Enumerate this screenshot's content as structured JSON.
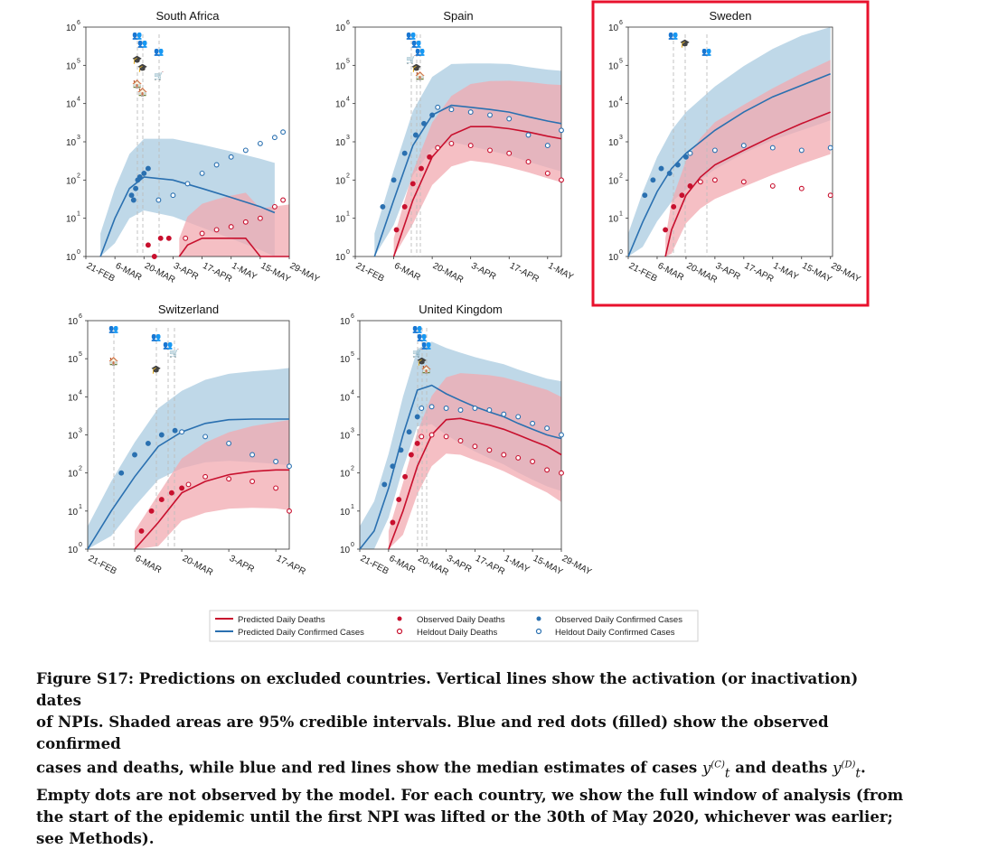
{
  "panels": [
    {
      "title": "South Africa",
      "xticks": [
        "21-FEB",
        "6-MAR",
        "20-MAR",
        "3-APR",
        "17-APR",
        "1-MAY",
        "15-MAY",
        "29-MAY"
      ],
      "npi_icons": [
        "👥",
        "👥",
        "👥",
        "🎓",
        "🎓",
        "🛒",
        "🏠",
        "🏠"
      ],
      "days": 98
    },
    {
      "title": "Spain",
      "xticks": [
        "21-FEB",
        "6-MAR",
        "20-MAR",
        "3-APR",
        "17-APR",
        "1-MAY"
      ],
      "npi_icons": [
        "👥",
        "👥",
        "👥",
        "🛒",
        "🎓",
        "🏠"
      ],
      "days": 75
    },
    {
      "title": "Sweden",
      "xticks": [
        "21-FEB",
        "6-MAR",
        "20-MAR",
        "3-APR",
        "17-APR",
        "1-MAY",
        "15-MAY",
        "29-MAY"
      ],
      "npi_icons": [
        "👥",
        "🎓",
        "👥"
      ],
      "days": 99,
      "highlighted": true
    },
    {
      "title": "Switzerland",
      "xticks": [
        "21-FEB",
        "6-MAR",
        "20-MAR",
        "3-APR",
        "17-APR"
      ],
      "npi_icons": [
        "👥",
        "👥",
        "👥",
        "🛒",
        "🏠",
        "🎓"
      ],
      "days": 60
    },
    {
      "title": "United Kingdom",
      "xticks": [
        "21-FEB",
        "6-MAR",
        "20-MAR",
        "3-APR",
        "17-APR",
        "1-MAY",
        "15-MAY",
        "29-MAY"
      ],
      "npi_icons": [
        "👥",
        "👥",
        "👥",
        "🛒",
        "🎓",
        "🏠"
      ],
      "days": 98
    }
  ],
  "yticks": [
    "10",
    "10",
    "10",
    "10",
    "10",
    "10",
    "10"
  ],
  "yexp": [
    "0",
    "1",
    "2",
    "3",
    "4",
    "5",
    "6"
  ],
  "legend": {
    "pred_deaths": "Predicted Daily Deaths",
    "pred_cases": "Predicted Daily Confirmed Cases",
    "obs_deaths": "Observed Daily Deaths",
    "held_deaths": "Heldout Daily Deaths",
    "obs_cases": "Observed Daily Confirmed Cases",
    "held_cases": "Heldout Daily Confirmed Cases"
  },
  "colors": {
    "cases": "#2a70b0",
    "cases_band": "#a9cbe0",
    "deaths": "#c8102e",
    "deaths_band": "#f2a9b0",
    "npi_purple": "#8e4a8c",
    "highlight": "#e8112d"
  },
  "caption": {
    "line1": "Figure S17: Predictions on excluded countries. Vertical lines show the activation (or inactivation) dates",
    "line2": "of NPIs. Shaded areas are 95% credible intervals. Blue and red dots (filled) show the observed confirmed",
    "line3a": "cases and deaths, while blue and red lines show the median estimates of cases ",
    "line3b": " and deaths ",
    "line3c": ".",
    "yC_base": "y",
    "yC_sup": "(C)",
    "yC_sub": "t",
    "yD_base": "y",
    "yD_sup": "(D)",
    "yD_sub": "t",
    "line4": "Empty dots are not observed by the model. For each country, we show the full window of analysis (from",
    "line5": "the start of the epidemic until the first NPI was lifted or the 30th of May 2020, whichever was earlier;",
    "line6": "see Methods)."
  },
  "chart_data": [
    {
      "type": "line",
      "title": "South Africa",
      "yscale": "log",
      "ylim": [
        1,
        1000000
      ],
      "x_dates": [
        "21-FEB",
        "6-MAR",
        "20-MAR",
        "3-APR",
        "17-APR",
        "1-MAY",
        "15-MAY",
        "29-MAY"
      ],
      "series": [
        {
          "name": "Predicted Daily Confirmed Cases",
          "x_day": [
            7,
            14,
            21,
            28,
            42,
            56,
            70,
            84,
            91
          ],
          "values": [
            1,
            10,
            60,
            120,
            100,
            60,
            35,
            20,
            14
          ]
        },
        {
          "name": "Predicted Daily Deaths",
          "x_day": [
            45,
            49,
            56,
            63,
            70,
            77,
            84,
            91,
            98
          ],
          "values": [
            1,
            2,
            3,
            3,
            3,
            3,
            1,
            1,
            1
          ]
        },
        {
          "name": "Observed Daily Confirmed Cases",
          "x_day": [
            22,
            23,
            24,
            25,
            26,
            28,
            30
          ],
          "values": [
            40,
            30,
            60,
            100,
            120,
            150,
            200
          ]
        },
        {
          "name": "Heldout Daily Confirmed Cases",
          "x_day": [
            35,
            42,
            49,
            56,
            63,
            70,
            77,
            84,
            91,
            95
          ],
          "values": [
            30,
            40,
            80,
            150,
            250,
            400,
            600,
            900,
            1300,
            1800
          ]
        },
        {
          "name": "Observed Daily Deaths",
          "x_day": [
            30,
            33,
            36,
            40
          ],
          "values": [
            2,
            1,
            3,
            3
          ]
        },
        {
          "name": "Heldout Daily Deaths",
          "x_day": [
            48,
            56,
            63,
            70,
            77,
            84,
            91,
            95
          ],
          "values": [
            3,
            4,
            5,
            6,
            8,
            10,
            20,
            30
          ]
        }
      ]
    },
    {
      "type": "line",
      "title": "Spain",
      "yscale": "log",
      "ylim": [
        1,
        1000000
      ],
      "x_dates": [
        "21-FEB",
        "6-MAR",
        "20-MAR",
        "3-APR",
        "17-APR",
        "1-MAY"
      ],
      "series": [
        {
          "name": "Predicted Daily Confirmed Cases",
          "x_day": [
            7,
            14,
            21,
            28,
            35,
            42,
            49,
            56,
            63,
            70,
            75
          ],
          "values": [
            1,
            30,
            800,
            5000,
            9000,
            8000,
            7000,
            6000,
            4500,
            3500,
            3000
          ]
        },
        {
          "name": "Predicted Daily Deaths",
          "x_day": [
            14,
            21,
            28,
            35,
            42,
            49,
            56,
            63,
            70,
            75
          ],
          "values": [
            1,
            30,
            400,
            1500,
            2500,
            2500,
            2200,
            1800,
            1400,
            1200
          ]
        },
        {
          "name": "Observed Daily Confirmed Cases",
          "x_day": [
            10,
            14,
            18,
            22,
            25,
            28
          ],
          "values": [
            20,
            100,
            500,
            1500,
            3000,
            5000
          ]
        },
        {
          "name": "Heldout Daily Confirmed Cases",
          "x_day": [
            30,
            35,
            42,
            49,
            56,
            63,
            70,
            75
          ],
          "values": [
            8000,
            7000,
            6000,
            5000,
            4000,
            1500,
            800,
            2000
          ]
        },
        {
          "name": "Observed Daily Deaths",
          "x_day": [
            15,
            18,
            21,
            24,
            27
          ],
          "values": [
            5,
            20,
            80,
            200,
            400
          ]
        },
        {
          "name": "Heldout Daily Deaths",
          "x_day": [
            30,
            35,
            42,
            49,
            56,
            63,
            70,
            75
          ],
          "values": [
            700,
            900,
            800,
            600,
            500,
            300,
            150,
            100
          ]
        }
      ]
    },
    {
      "type": "line",
      "title": "Sweden",
      "yscale": "log",
      "ylim": [
        1,
        1000000
      ],
      "x_dates": [
        "21-FEB",
        "6-MAR",
        "20-MAR",
        "3-APR",
        "17-APR",
        "1-MAY",
        "15-MAY",
        "29-MAY"
      ],
      "series": [
        {
          "name": "Predicted Daily Confirmed Cases",
          "x_day": [
            0,
            7,
            14,
            21,
            28,
            42,
            56,
            70,
            84,
            98
          ],
          "values": [
            1,
            8,
            50,
            200,
            500,
            2000,
            6000,
            15000,
            30000,
            60000
          ]
        },
        {
          "name": "Predicted Daily Deaths",
          "x_day": [
            18,
            21,
            28,
            35,
            42,
            56,
            70,
            84,
            98
          ],
          "values": [
            1,
            5,
            40,
            120,
            250,
            600,
            1400,
            3000,
            6000
          ]
        },
        {
          "name": "Observed Daily Confirmed Cases",
          "x_day": [
            8,
            12,
            16,
            20,
            24,
            28
          ],
          "values": [
            40,
            100,
            200,
            150,
            250,
            400
          ]
        },
        {
          "name": "Heldout Daily Confirmed Cases",
          "x_day": [
            30,
            42,
            56,
            70,
            84,
            98
          ],
          "values": [
            500,
            600,
            800,
            700,
            600,
            700
          ]
        },
        {
          "name": "Observed Daily Deaths",
          "x_day": [
            18,
            22,
            26,
            30
          ],
          "values": [
            5,
            20,
            40,
            70
          ]
        },
        {
          "name": "Heldout Daily Deaths",
          "x_day": [
            35,
            42,
            56,
            70,
            84,
            98
          ],
          "values": [
            90,
            100,
            90,
            70,
            60,
            40
          ]
        }
      ]
    },
    {
      "type": "line",
      "title": "Switzerland",
      "yscale": "log",
      "ylim": [
        1,
        1000000
      ],
      "x_dates": [
        "21-FEB",
        "6-MAR",
        "20-MAR",
        "3-APR",
        "17-APR"
      ],
      "series": [
        {
          "name": "Predicted Daily Confirmed Cases",
          "x_day": [
            0,
            7,
            14,
            21,
            28,
            35,
            42,
            49,
            56,
            60
          ],
          "values": [
            1,
            10,
            80,
            500,
            1200,
            2000,
            2500,
            2600,
            2600,
            2600
          ]
        },
        {
          "name": "Predicted Daily Deaths",
          "x_day": [
            14,
            21,
            28,
            35,
            42,
            49,
            56,
            60
          ],
          "values": [
            1,
            5,
            30,
            60,
            90,
            110,
            120,
            120
          ]
        },
        {
          "name": "Observed Daily Confirmed Cases",
          "x_day": [
            10,
            14,
            18,
            22,
            26
          ],
          "values": [
            100,
            300,
            600,
            1000,
            1300
          ]
        },
        {
          "name": "Heldout Daily Confirmed Cases",
          "x_day": [
            28,
            35,
            42,
            49,
            56,
            60
          ],
          "values": [
            1200,
            900,
            600,
            300,
            200,
            150
          ]
        },
        {
          "name": "Observed Daily Deaths",
          "x_day": [
            16,
            19,
            22,
            25,
            28
          ],
          "values": [
            3,
            10,
            20,
            30,
            40
          ]
        },
        {
          "name": "Heldout Daily Deaths",
          "x_day": [
            30,
            35,
            42,
            49,
            56,
            60
          ],
          "values": [
            50,
            80,
            70,
            60,
            40,
            10
          ]
        }
      ]
    },
    {
      "type": "line",
      "title": "United Kingdom",
      "yscale": "log",
      "ylim": [
        1,
        1000000
      ],
      "x_dates": [
        "21-FEB",
        "6-MAR",
        "20-MAR",
        "3-APR",
        "17-APR",
        "1-MAY",
        "15-MAY",
        "29-MAY"
      ],
      "series": [
        {
          "name": "Predicted Daily Confirmed Cases",
          "x_day": [
            0,
            7,
            14,
            21,
            28,
            35,
            42,
            49,
            56,
            63,
            70,
            77,
            84,
            91,
            98
          ],
          "values": [
            1,
            3,
            40,
            1000,
            15000,
            20000,
            12000,
            8000,
            5500,
            4000,
            3000,
            2000,
            1400,
            1000,
            800
          ]
        },
        {
          "name": "Predicted Daily Deaths",
          "x_day": [
            14,
            21,
            28,
            35,
            42,
            49,
            56,
            63,
            70,
            77,
            84,
            91,
            98
          ],
          "values": [
            1,
            10,
            150,
            1000,
            2500,
            2700,
            2200,
            1800,
            1400,
            1000,
            700,
            500,
            300
          ]
        },
        {
          "name": "Observed Daily Confirmed Cases",
          "x_day": [
            12,
            16,
            20,
            24,
            28
          ],
          "values": [
            50,
            150,
            400,
            1200,
            3000
          ]
        },
        {
          "name": "Heldout Daily Confirmed Cases",
          "x_day": [
            30,
            35,
            42,
            49,
            56,
            63,
            70,
            77,
            84,
            91,
            98
          ],
          "values": [
            5000,
            5500,
            5000,
            4500,
            5000,
            4500,
            3500,
            3000,
            2000,
            1500,
            1000
          ]
        },
        {
          "name": "Observed Daily Deaths",
          "x_day": [
            16,
            19,
            22,
            25,
            28
          ],
          "values": [
            5,
            20,
            80,
            300,
            600
          ]
        },
        {
          "name": "Heldout Daily Deaths",
          "x_day": [
            30,
            35,
            42,
            49,
            56,
            63,
            70,
            77,
            84,
            91,
            98
          ],
          "values": [
            900,
            1000,
            900,
            700,
            500,
            400,
            300,
            250,
            200,
            120,
            100
          ]
        }
      ]
    }
  ]
}
